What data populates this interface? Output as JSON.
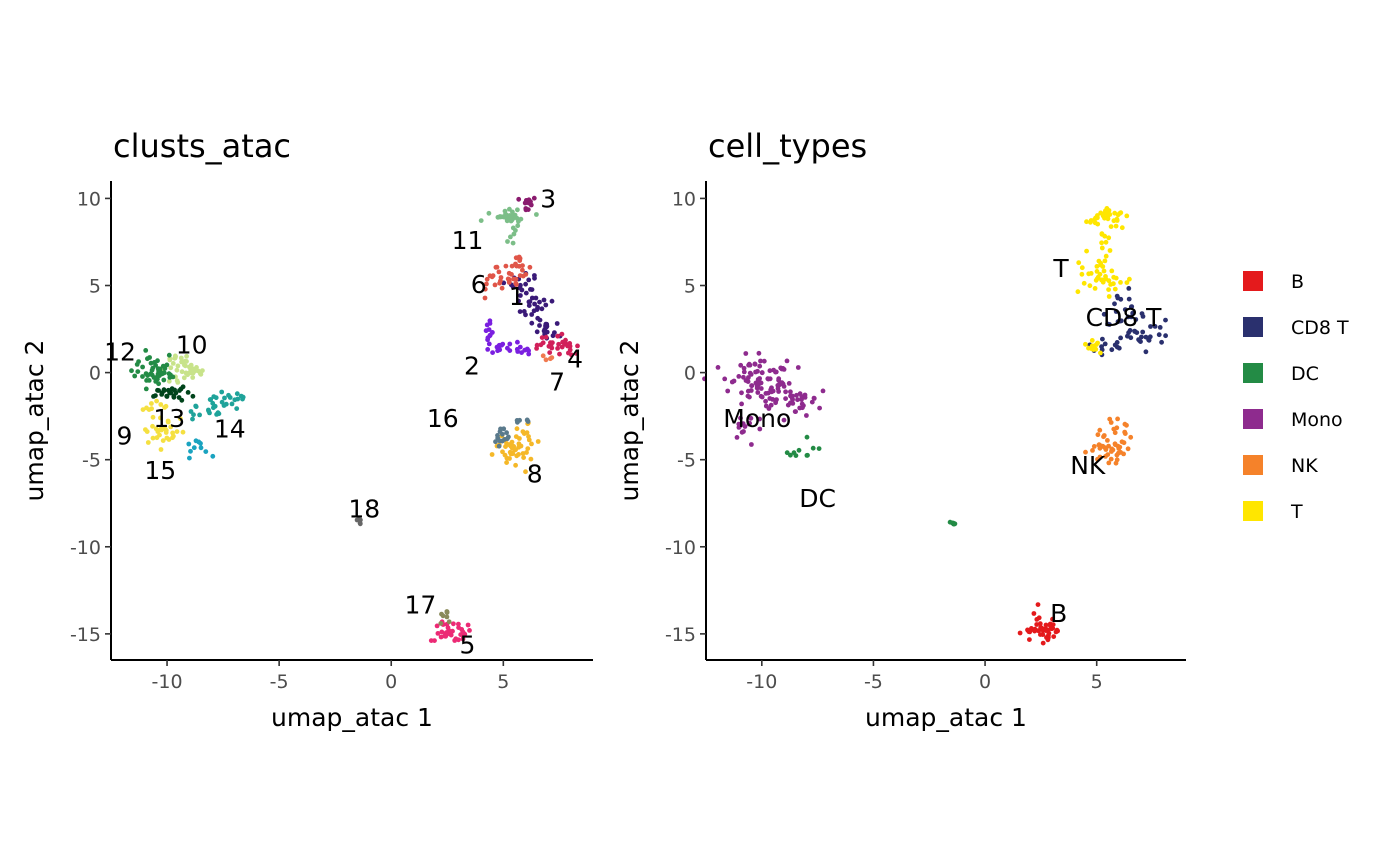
{
  "chart_data": [
    {
      "type": "scatter",
      "title": "clusts_atac",
      "xlabel": "umap_atac 1",
      "ylabel": "umap_atac 2",
      "xlim": [
        -12.5,
        9.0
      ],
      "ylim": [
        -16.5,
        11.0
      ],
      "xticks": [
        -10,
        -5,
        0,
        5
      ],
      "xtick_labels": [
        "-10",
        "-5",
        "0",
        "5"
      ],
      "yticks": [
        10,
        5,
        0,
        -5,
        -10,
        -15
      ],
      "ytick_labels": [
        "10",
        "5",
        "0",
        "-5",
        "-10",
        "-15"
      ],
      "grid": false,
      "legend": "none",
      "clusters": [
        {
          "name": "1",
          "color": "#3a1a78",
          "points": [
            [
              6.0,
              4.8,
              0.35,
              0.45,
              20
            ],
            [
              6.5,
              3.3,
              0.4,
              0.5,
              22
            ],
            [
              7.1,
              2.5,
              0.3,
              0.35,
              14
            ]
          ],
          "label": [
            5.6,
            4.4
          ]
        },
        {
          "name": "2",
          "color": "#7a1fe0",
          "points": [
            [
              4.3,
              2.3,
              0.1,
              0.5,
              12
            ],
            [
              5.0,
              1.5,
              0.35,
              0.2,
              16
            ],
            [
              6.0,
              1.3,
              0.15,
              0.1,
              5
            ]
          ],
          "label": [
            3.6,
            0.4
          ]
        },
        {
          "name": "3",
          "color": "#8a1a6e",
          "points": [
            [
              6.1,
              9.7,
              0.25,
              0.2,
              12
            ]
          ],
          "label": [
            7.0,
            10.0
          ]
        },
        {
          "name": "4",
          "color": "#d1205a",
          "points": [
            [
              7.3,
              1.6,
              0.5,
              0.3,
              26
            ],
            [
              7.9,
              1.3,
              0.15,
              0.2,
              5
            ]
          ],
          "label": [
            8.2,
            0.8
          ]
        },
        {
          "name": "5",
          "color": "#ec2a75",
          "points": [
            [
              2.6,
              -14.85,
              0.4,
              0.25,
              36
            ]
          ],
          "label": [
            3.4,
            -15.6
          ]
        },
        {
          "name": "6",
          "color": "#e05548",
          "points": [
            [
              5.0,
              5.6,
              0.45,
              0.45,
              34
            ],
            [
              5.6,
              6.4,
              0.15,
              0.3,
              6
            ]
          ],
          "label": [
            3.9,
            5.1
          ]
        },
        {
          "name": "7",
          "color": "#f07a50",
          "points": [
            [
              7.1,
              0.9,
              0.2,
              0.1,
              4
            ]
          ],
          "label": [
            7.4,
            -0.5
          ]
        },
        {
          "name": "8",
          "color": "#f5b828",
          "points": [
            [
              5.6,
              -4.5,
              0.4,
              0.5,
              40
            ],
            [
              5.9,
              -3.5,
              0.3,
              0.4,
              10
            ]
          ],
          "label": [
            6.4,
            -5.8
          ]
        },
        {
          "name": "9",
          "color": "#f5e040",
          "points": [
            [
              -10.2,
              -3.4,
              0.45,
              0.4,
              30
            ],
            [
              -10.5,
              -1.9,
              0.3,
              0.3,
              10
            ]
          ],
          "label": [
            -11.9,
            -3.6
          ]
        },
        {
          "name": "10",
          "color": "#c8e38a",
          "points": [
            [
              -9.2,
              0.1,
              0.55,
              0.35,
              34
            ],
            [
              -9.5,
              0.8,
              0.3,
              0.15,
              10
            ]
          ],
          "label": [
            -8.9,
            1.6
          ]
        },
        {
          "name": "11",
          "color": "#7cbe88",
          "points": [
            [
              5.3,
              9.0,
              0.45,
              0.25,
              30
            ],
            [
              5.4,
              8.0,
              0.15,
              0.35,
              8
            ]
          ],
          "label": [
            3.4,
            7.6
          ]
        },
        {
          "name": "12",
          "color": "#238b45",
          "points": [
            [
              -10.5,
              0.1,
              0.55,
              0.45,
              48
            ]
          ],
          "label": [
            -12.1,
            1.2
          ]
        },
        {
          "name": "13",
          "color": "#00441b",
          "points": [
            [
              -9.8,
              -1.2,
              0.45,
              0.18,
              26
            ]
          ],
          "label": [
            -9.9,
            -2.6
          ]
        },
        {
          "name": "14",
          "color": "#1fa39a",
          "points": [
            [
              -8.0,
              -1.9,
              0.6,
              0.35,
              26
            ],
            [
              -7.0,
              -1.4,
              0.35,
              0.15,
              8
            ]
          ],
          "label": [
            -7.2,
            -3.2
          ]
        },
        {
          "name": "15",
          "color": "#1aa3c0",
          "points": [
            [
              -8.5,
              -4.4,
              0.3,
              0.35,
              10
            ]
          ],
          "label": [
            -10.3,
            -5.6
          ]
        },
        {
          "name": "16",
          "color": "#5a7a8c",
          "points": [
            [
              5.0,
              -3.6,
              0.2,
              0.25,
              14
            ],
            [
              5.8,
              -2.7,
              0.25,
              0.1,
              6
            ]
          ],
          "label": [
            2.3,
            -2.6
          ]
        },
        {
          "name": "17",
          "color": "#8a8a5a",
          "points": [
            [
              2.35,
              -14.0,
              0.12,
              0.3,
              8
            ]
          ],
          "label": [
            1.3,
            -13.3
          ]
        },
        {
          "name": "18",
          "color": "#666666",
          "points": [
            [
              -1.45,
              -8.6,
              0.08,
              0.12,
              5
            ]
          ],
          "label": [
            -1.2,
            -7.8
          ]
        }
      ]
    },
    {
      "type": "scatter",
      "title": "cell_types",
      "xlabel": "umap_atac 1",
      "ylabel": "umap_atac 2",
      "xlim": [
        -12.5,
        9.0
      ],
      "ylim": [
        -16.5,
        11.0
      ],
      "xticks": [
        -10,
        -5,
        0,
        5
      ],
      "xtick_labels": [
        "-10",
        "-5",
        "0",
        "5"
      ],
      "yticks": [
        10,
        5,
        0,
        -5,
        -10,
        -15
      ],
      "ytick_labels": [
        "10",
        "5",
        "0",
        "-5",
        "-10",
        "-15"
      ],
      "grid": false,
      "legend": "right",
      "legend_entries": [
        {
          "name": "B",
          "color": "#e41a1c"
        },
        {
          "name": "CD8 T",
          "color": "#2a306e"
        },
        {
          "name": "DC",
          "color": "#238b45"
        },
        {
          "name": "Mono",
          "color": "#8e2b8e"
        },
        {
          "name": "NK",
          "color": "#f5822a"
        },
        {
          "name": "T",
          "color": "#ffe600"
        }
      ],
      "clusters": [
        {
          "name": "B",
          "color": "#e41a1c",
          "points": [
            [
              2.6,
              -14.8,
              0.4,
              0.3,
              40
            ],
            [
              2.35,
              -13.9,
              0.1,
              0.3,
              6
            ]
          ],
          "label": [
            3.3,
            -13.8
          ]
        },
        {
          "name": "CD8 T",
          "color": "#2a306e",
          "points": [
            [
              6.2,
              3.5,
              0.4,
              0.6,
              22
            ],
            [
              7.0,
              2.2,
              0.5,
              0.4,
              26
            ],
            [
              5.5,
              1.4,
              0.4,
              0.2,
              12
            ]
          ],
          "label": [
            6.2,
            3.2
          ]
        },
        {
          "name": "DC",
          "color": "#238b45",
          "points": [
            [
              -8.3,
              -4.4,
              0.3,
              0.35,
              10
            ],
            [
              -1.45,
              -8.6,
              0.1,
              0.12,
              6
            ]
          ],
          "label": [
            -7.5,
            -7.2
          ]
        },
        {
          "name": "Mono",
          "color": "#8e2b8e",
          "points": [
            [
              -10.0,
              -0.5,
              0.8,
              0.8,
              90
            ],
            [
              -8.5,
              -1.6,
              0.7,
              0.4,
              30
            ],
            [
              -10.6,
              -3.4,
              0.35,
              0.4,
              14
            ]
          ],
          "label": [
            -10.2,
            -2.6
          ]
        },
        {
          "name": "NK",
          "color": "#f5822a",
          "points": [
            [
              5.6,
              -4.4,
              0.4,
              0.5,
              38
            ],
            [
              6.0,
              -3.2,
              0.3,
              0.4,
              12
            ]
          ],
          "label": [
            4.6,
            -5.3
          ]
        },
        {
          "name": "T",
          "color": "#ffe600",
          "points": [
            [
              5.4,
              9.0,
              0.5,
              0.3,
              34
            ],
            [
              5.3,
              5.6,
              0.5,
              0.6,
              40
            ],
            [
              4.9,
              1.5,
              0.3,
              0.2,
              12
            ],
            [
              5.4,
              7.5,
              0.2,
              0.5,
              10
            ]
          ],
          "label": [
            3.4,
            6.0
          ]
        }
      ]
    }
  ]
}
